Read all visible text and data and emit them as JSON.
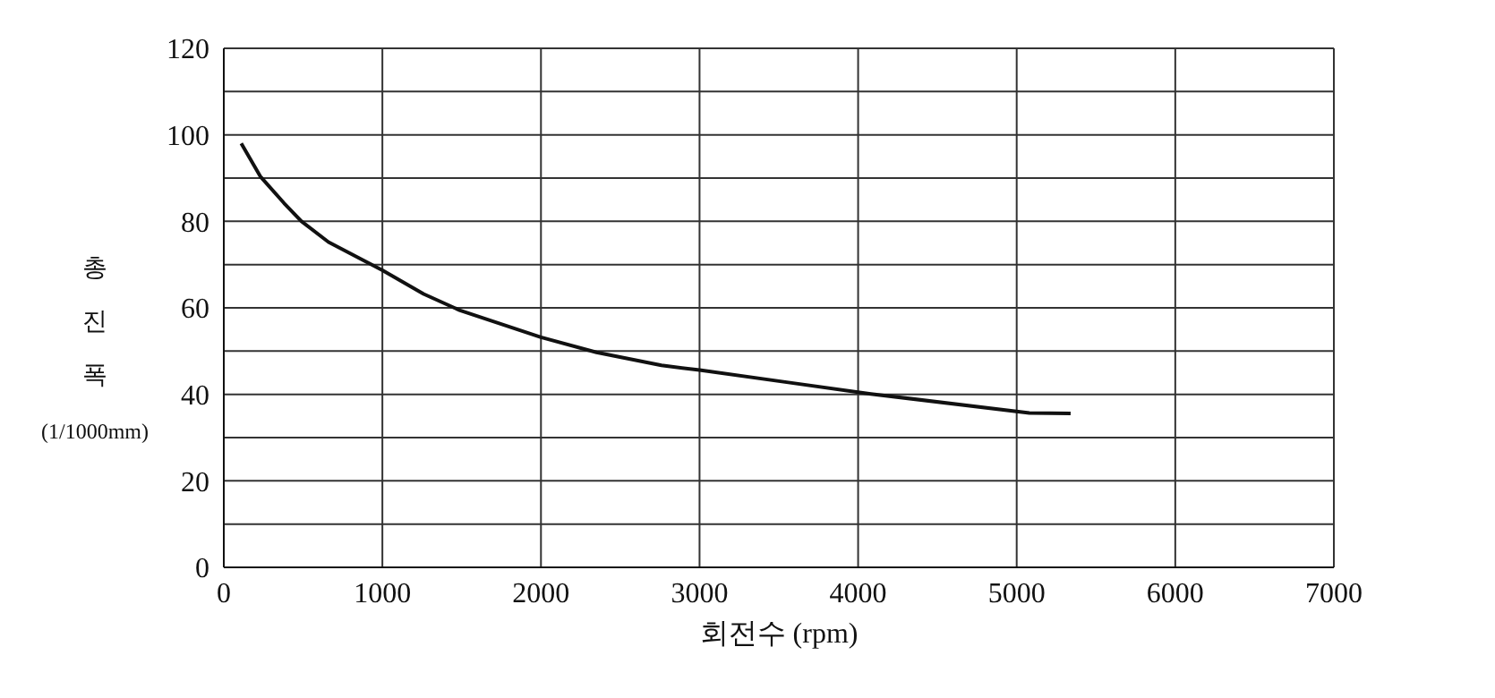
{
  "chart_data": {
    "type": "line",
    "xlabel": "회전수 (rpm)",
    "ylabel": "총\n진\n폭\n(1/1000mm)",
    "x": [
      110,
      230,
      380,
      490,
      660,
      1000,
      1260,
      1490,
      2000,
      2350,
      2760,
      3000,
      3550,
      4080,
      5080,
      5340
    ],
    "series": [
      {
        "color": "#111111",
        "values": [
          98,
          90.4,
          84.2,
          80,
          75.2,
          68.7,
          63.2,
          59.4,
          53.2,
          49.7,
          46.7,
          45.6,
          42.8,
          40.1,
          35.7,
          35.6
        ]
      }
    ],
    "xlim": [
      0,
      7000
    ],
    "xticks": [
      0,
      1000,
      2000,
      3000,
      4000,
      5000,
      6000,
      7000
    ],
    "ylim": [
      0,
      120
    ],
    "yticks": [
      0,
      {
        "value": 10,
        "label": null
      },
      20,
      {
        "value": 30,
        "label": null
      },
      40,
      {
        "value": 50,
        "label": null
      },
      60,
      {
        "value": 70,
        "label": null
      },
      80,
      {
        "value": 90,
        "label": null
      },
      100,
      {
        "value": 110,
        "label": null
      },
      120
    ],
    "grid": true,
    "marker": "none",
    "line_style": "solid",
    "legend": false
  }
}
